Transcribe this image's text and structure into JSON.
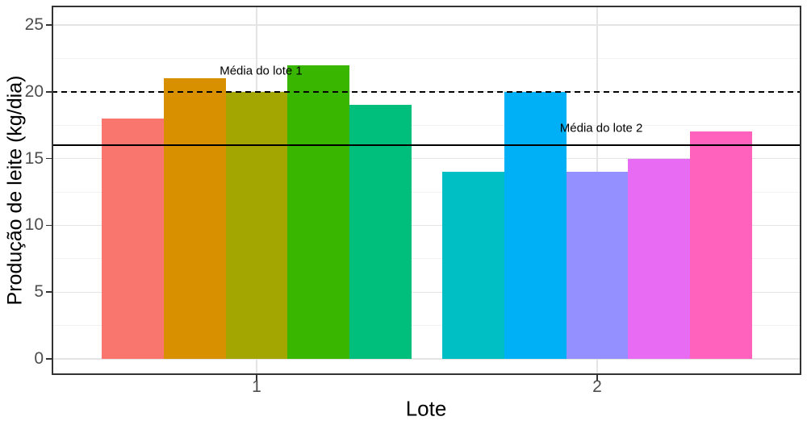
{
  "chart_data": {
    "type": "bar",
    "title": "",
    "xlabel": "Lote",
    "ylabel": "Produção de leite (kg/dia)",
    "x_categories": [
      "1",
      "2"
    ],
    "x_positions": [
      1,
      2
    ],
    "ylim": [
      0,
      25
    ],
    "yticks": [
      0,
      5,
      10,
      15,
      20,
      25
    ],
    "yticks_minor": [
      2.5,
      7.5,
      12.5,
      17.5,
      22.5
    ],
    "grid": true,
    "legend": "none",
    "groups": [
      {
        "category": "1",
        "bars": [
          {
            "value": 18,
            "color": "#F8766D"
          },
          {
            "value": 21,
            "color": "#D89000"
          },
          {
            "value": 20,
            "color": "#A3A500"
          },
          {
            "value": 22,
            "color": "#39B600"
          },
          {
            "value": 19,
            "color": "#00BF7D"
          }
        ]
      },
      {
        "category": "2",
        "bars": [
          {
            "value": 14,
            "color": "#00BFC4"
          },
          {
            "value": 20,
            "color": "#00B0F6"
          },
          {
            "value": 14,
            "color": "#9590FF"
          },
          {
            "value": 15,
            "color": "#E76BF3"
          },
          {
            "value": 17,
            "color": "#FF62BC"
          }
        ]
      }
    ],
    "reference_lines": [
      {
        "label": "Média do lote 1",
        "value": 20,
        "style": "dashed",
        "color": "#000000"
      },
      {
        "label": "Média do lote 2",
        "value": 16,
        "style": "solid",
        "color": "#000000"
      }
    ],
    "annotations": [
      {
        "text": "Média do lote 1",
        "x": 1.013,
        "y": 21.56
      },
      {
        "text": "Média do lote 2",
        "x": 2.012,
        "y": 17.27
      }
    ],
    "colors": {
      "axis_text": "#4d4d4d",
      "axis_title": "#000000",
      "panel_border": "#333333",
      "grid_major": "#e4e4e4",
      "grid_minor": "#f2f2f2",
      "background": "#ffffff"
    }
  }
}
